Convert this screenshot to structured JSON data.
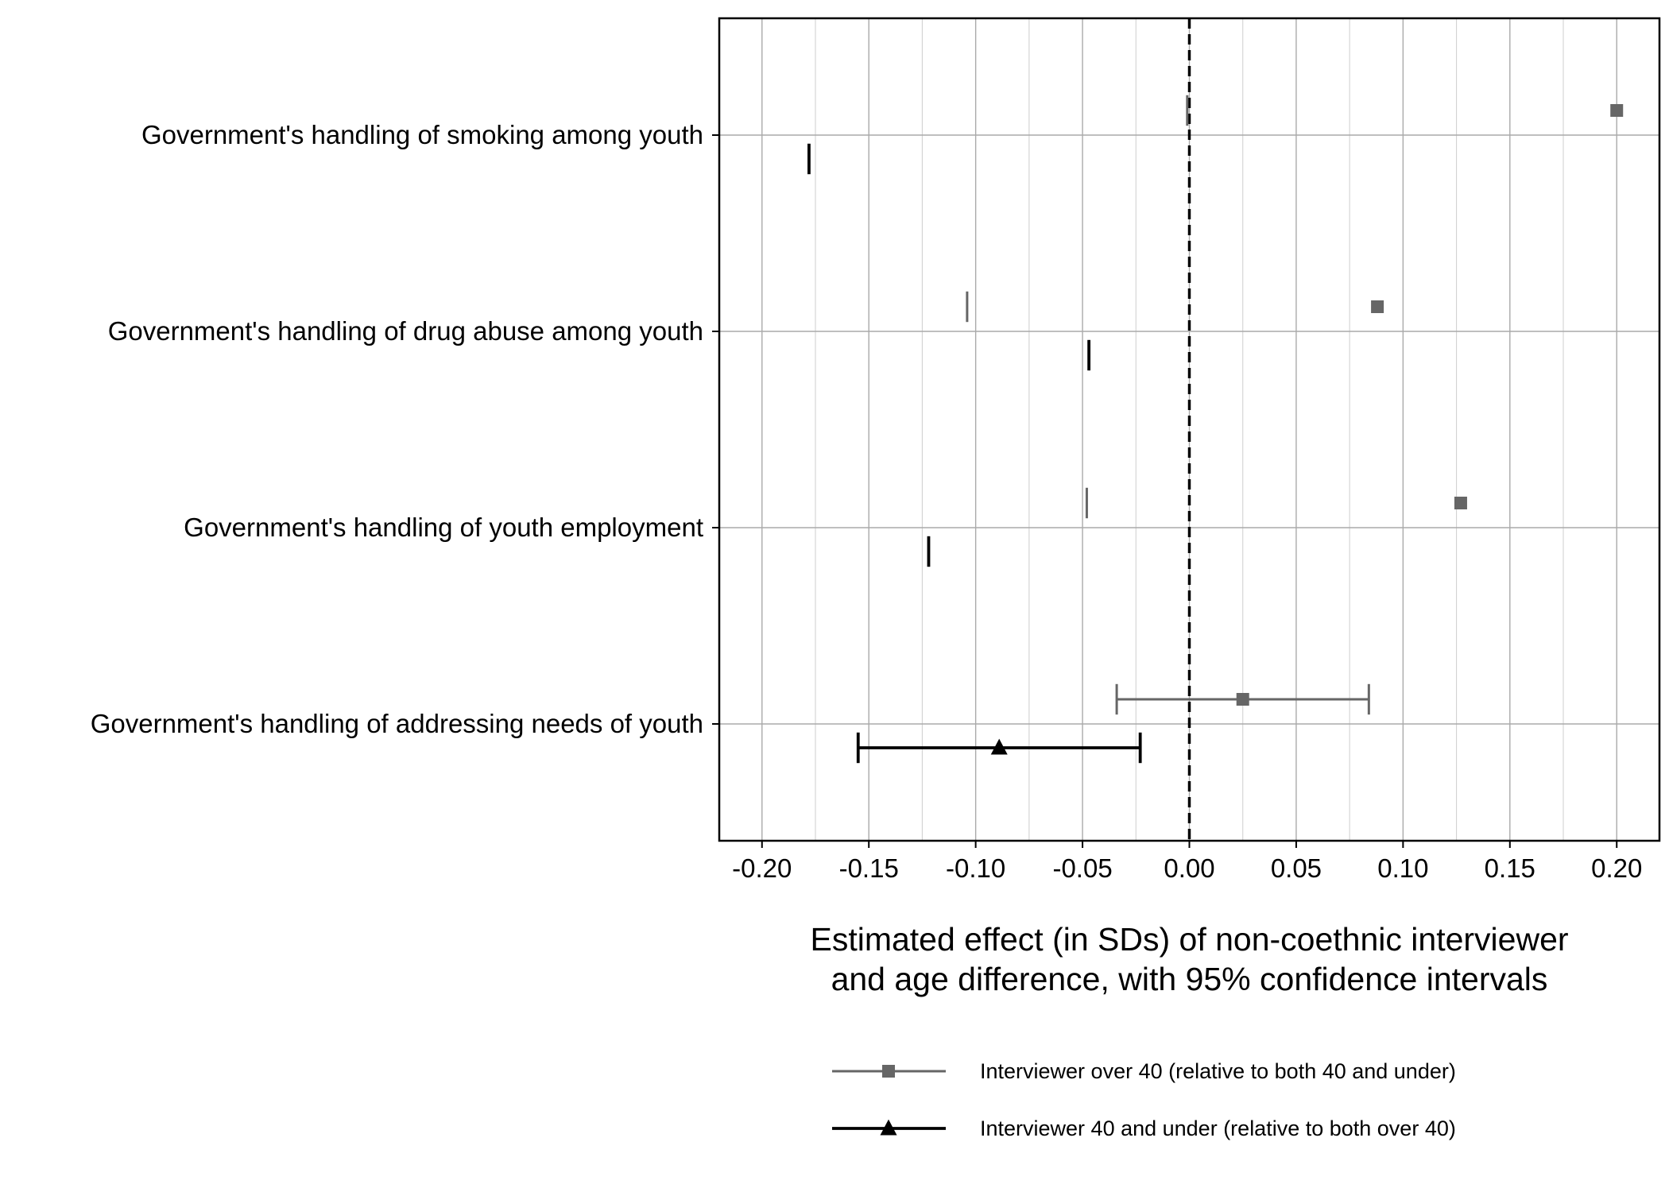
{
  "chart_data": {
    "type": "scatter",
    "title": "",
    "xlabel_lines": [
      "Estimated effect (in SDs) of non-coethnic interviewer",
      "and age difference, with 95% confidence intervals"
    ],
    "ylabel": "",
    "xlim": [
      -0.22,
      0.22
    ],
    "xticks": [
      -0.2,
      -0.15,
      -0.1,
      -0.05,
      0.0,
      0.05,
      0.1,
      0.15,
      0.2
    ],
    "xtick_labels": [
      "-0.20",
      "-0.15",
      "-0.10",
      "-0.05",
      "0.00",
      "0.05",
      "0.10",
      "0.15",
      "0.20"
    ],
    "reference_line": 0,
    "grid": true,
    "legend_position": "bottom",
    "categories": [
      "Government's handling of smoking among youth",
      "Government's handling of drug abuse among youth",
      "Government's handling of youth employment",
      "Government's handling of addressing needs of youth"
    ],
    "series": [
      {
        "name": "Interviewer over 40 (relative to both 40 and under)",
        "marker": "square",
        "color": "#666666",
        "points": [
          {
            "estimate": 0.2,
            "ci_low": -0.001,
            "ci_high": null
          },
          {
            "estimate": 0.088,
            "ci_low": -0.104,
            "ci_high": null
          },
          {
            "estimate": 0.127,
            "ci_low": -0.048,
            "ci_high": null
          },
          {
            "estimate": 0.025,
            "ci_low": -0.034,
            "ci_high": 0.084
          }
        ]
      },
      {
        "name": "Interviewer 40 and under (relative to both over 40)",
        "marker": "triangle",
        "color": "#000000",
        "points": [
          {
            "estimate": null,
            "ci_low": -0.178,
            "ci_high": null
          },
          {
            "estimate": null,
            "ci_low": -0.047,
            "ci_high": null
          },
          {
            "estimate": null,
            "ci_low": -0.122,
            "ci_high": null
          },
          {
            "estimate": -0.089,
            "ci_low": -0.155,
            "ci_high": -0.023
          }
        ]
      }
    ]
  }
}
